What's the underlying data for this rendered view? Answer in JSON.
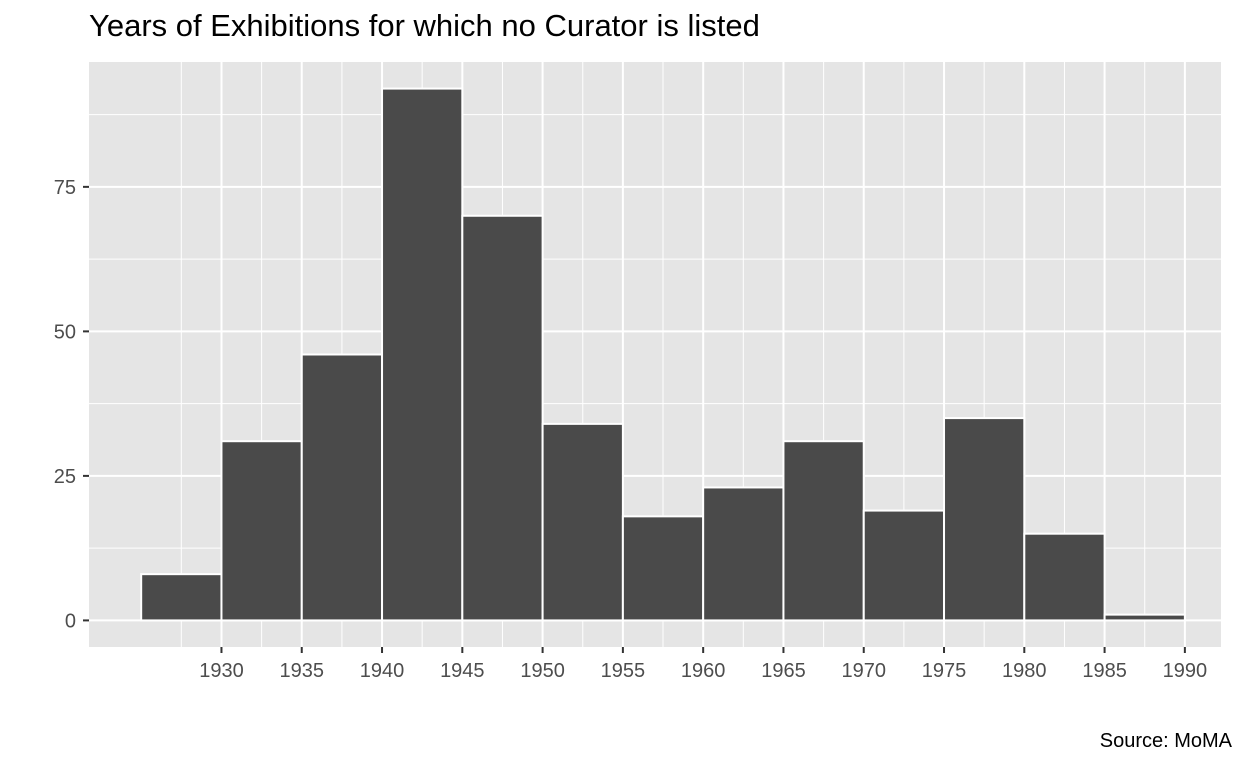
{
  "chart_data": {
    "type": "bar",
    "title": "Years of Exhibitions for which no Curator is listed",
    "caption": "Source: MoMA",
    "xlabel": "",
    "ylabel": "",
    "bin_width": 5,
    "bins": [
      {
        "start": 1925,
        "end": 1930,
        "count": 8
      },
      {
        "start": 1930,
        "end": 1935,
        "count": 31
      },
      {
        "start": 1935,
        "end": 1940,
        "count": 46
      },
      {
        "start": 1940,
        "end": 1945,
        "count": 92
      },
      {
        "start": 1945,
        "end": 1950,
        "count": 70
      },
      {
        "start": 1950,
        "end": 1955,
        "count": 34
      },
      {
        "start": 1955,
        "end": 1960,
        "count": 18
      },
      {
        "start": 1960,
        "end": 1965,
        "count": 23
      },
      {
        "start": 1965,
        "end": 1970,
        "count": 31
      },
      {
        "start": 1970,
        "end": 1975,
        "count": 19
      },
      {
        "start": 1975,
        "end": 1980,
        "count": 35
      },
      {
        "start": 1980,
        "end": 1985,
        "count": 15
      },
      {
        "start": 1985,
        "end": 1990,
        "count": 1
      }
    ],
    "xlim": [
      1921.75,
      1992.25
    ],
    "ylim": [
      -4.6,
      96.6
    ],
    "x_ticks": [
      1930,
      1935,
      1940,
      1945,
      1950,
      1955,
      1960,
      1965,
      1970,
      1975,
      1980,
      1985,
      1990
    ],
    "y_ticks": [
      0,
      25,
      50,
      75
    ],
    "grid": true,
    "legend": "none",
    "colors": {
      "panel_background": "#e5e5e5",
      "grid_line": "#ffffff",
      "bar_fill": "#4a4a4a",
      "bar_outline": "#ffffff",
      "tick_text": "#4d4d4d",
      "tick_mark": "#333333"
    }
  }
}
